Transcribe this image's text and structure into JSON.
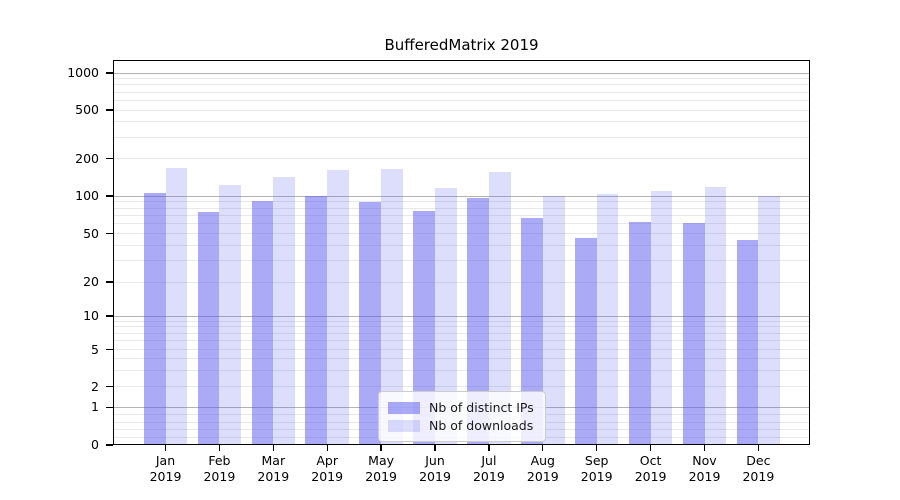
{
  "title": "BufferedMatrix 2019",
  "colors": {
    "bar_primary": "rgba(85,85,240,0.5)",
    "bar_secondary": "rgba(85,85,240,0.2)",
    "grid_major": "#b3b3b3",
    "grid_minor": "#e8e8e8",
    "axis": "#000000"
  },
  "chart_data": {
    "type": "bar",
    "title": "BufferedMatrix 2019",
    "xlabel": "",
    "ylabel": "",
    "scale": "symlog",
    "grid": true,
    "legend_position": "lower center",
    "categories": [
      {
        "month": "Jan",
        "year": "2019"
      },
      {
        "month": "Feb",
        "year": "2019"
      },
      {
        "month": "Mar",
        "year": "2019"
      },
      {
        "month": "Apr",
        "year": "2019"
      },
      {
        "month": "May",
        "year": "2019"
      },
      {
        "month": "Jun",
        "year": "2019"
      },
      {
        "month": "Jul",
        "year": "2019"
      },
      {
        "month": "Aug",
        "year": "2019"
      },
      {
        "month": "Sep",
        "year": "2019"
      },
      {
        "month": "Oct",
        "year": "2019"
      },
      {
        "month": "Nov",
        "year": "2019"
      },
      {
        "month": "Dec",
        "year": "2019"
      }
    ],
    "series": [
      {
        "key": "distinct-ips",
        "name": "Nb of distinct IPs",
        "color": "rgba(85,85,240,0.5)",
        "values": [
          105,
          74,
          92,
          100,
          90,
          76,
          97,
          66,
          46,
          62,
          61,
          44
        ]
      },
      {
        "key": "downloads",
        "name": "Nb of downloads",
        "color": "rgba(85,85,240,0.2)",
        "values": [
          167,
          123,
          143,
          162,
          166,
          115,
          157,
          100,
          103,
          110,
          119,
          100
        ]
      }
    ],
    "yticks": [
      0,
      1,
      2,
      5,
      10,
      20,
      50,
      100,
      200,
      500,
      1000
    ],
    "ylim": [
      0,
      1300
    ]
  }
}
